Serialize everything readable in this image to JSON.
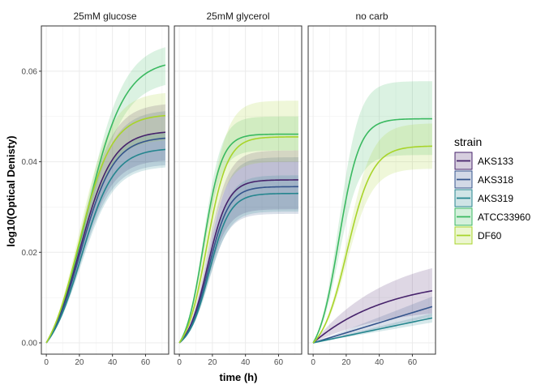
{
  "chart_data": {
    "type": "line",
    "xlabel": "time (h)",
    "ylabel": "log10(Optical Denisty)",
    "xlim": [
      -3,
      74
    ],
    "ylim": [
      -0.0025,
      0.07
    ],
    "x_ticks": [
      0,
      20,
      40,
      60
    ],
    "y_ticks": [
      0.0,
      0.02,
      0.04,
      0.06
    ],
    "y_tick_labels": [
      "0.00",
      "0.02",
      "0.04",
      "0.06"
    ],
    "grid": true,
    "legend_position": "right",
    "legend_title": "strain",
    "colors": {
      "AKS133": "#46226b",
      "AKS318": "#34548c",
      "AKS319": "#24858e",
      "ATCC33960": "#3ab960",
      "DF60": "#a8d42a"
    },
    "panels": [
      {
        "title": "25mM glucose",
        "series": [
          {
            "name": "AKS133",
            "curve": "logistic",
            "x_end": 72,
            "asymptote": 0.0468,
            "rate": 0.1,
            "midpoint": 20,
            "lower": 0.0405,
            "upper": 0.053
          },
          {
            "name": "AKS318",
            "curve": "logistic",
            "x_end": 72,
            "asymptote": 0.0455,
            "rate": 0.1,
            "midpoint": 20.5,
            "lower": 0.0395,
            "upper": 0.0515
          },
          {
            "name": "AKS319",
            "curve": "logistic",
            "x_end": 72,
            "asymptote": 0.043,
            "rate": 0.1,
            "midpoint": 21,
            "lower": 0.039,
            "upper": 0.047
          },
          {
            "name": "ATCC33960",
            "curve": "logistic",
            "x_end": 72,
            "asymptote": 0.0625,
            "rate": 0.085,
            "midpoint": 23.5,
            "lower": 0.058,
            "upper": 0.0665
          },
          {
            "name": "DF60",
            "curve": "logistic",
            "x_end": 72,
            "asymptote": 0.0505,
            "rate": 0.1,
            "midpoint": 19.5,
            "lower": 0.045,
            "upper": 0.0555
          }
        ]
      },
      {
        "title": "25mM glycerol",
        "series": [
          {
            "name": "AKS133",
            "curve": "logistic",
            "x_end": 72,
            "asymptote": 0.036,
            "rate": 0.16,
            "midpoint": 17,
            "lower": 0.0295,
            "upper": 0.0425
          },
          {
            "name": "AKS318",
            "curve": "logistic",
            "x_end": 72,
            "asymptote": 0.0345,
            "rate": 0.16,
            "midpoint": 17.5,
            "lower": 0.0285,
            "upper": 0.041
          },
          {
            "name": "AKS319",
            "curve": "logistic",
            "x_end": 72,
            "asymptote": 0.033,
            "rate": 0.16,
            "midpoint": 18,
            "lower": 0.029,
            "upper": 0.037
          },
          {
            "name": "ATCC33960",
            "curve": "logistic",
            "x_end": 72,
            "asymptote": 0.0461,
            "rate": 0.18,
            "midpoint": 14.5,
            "lower": 0.0425,
            "upper": 0.05
          },
          {
            "name": "DF60",
            "curve": "logistic",
            "x_end": 72,
            "asymptote": 0.0455,
            "rate": 0.16,
            "midpoint": 16.5,
            "lower": 0.04,
            "upper": 0.0535
          }
        ]
      },
      {
        "title": "no carb",
        "series": [
          {
            "name": "AKS133",
            "curve": "saturating",
            "x_end": 72,
            "asymptote": 0.0115,
            "rate": 0.022,
            "lower": 0.0065,
            "upper": 0.0165
          },
          {
            "name": "AKS318",
            "curve": "linear",
            "x_end": 72,
            "asymptote": 0.008,
            "lower": 0.0058,
            "upper": 0.0102
          },
          {
            "name": "AKS319",
            "curve": "linear",
            "x_end": 72,
            "asymptote": 0.0055,
            "lower": 0.0045,
            "upper": 0.0065
          },
          {
            "name": "ATCC33960",
            "curve": "logistic",
            "x_end": 72,
            "asymptote": 0.0495,
            "rate": 0.16,
            "midpoint": 15.5,
            "lower": 0.0415,
            "upper": 0.0578
          },
          {
            "name": "DF60",
            "curve": "logistic",
            "x_end": 72,
            "asymptote": 0.0435,
            "rate": 0.13,
            "midpoint": 20.5,
            "lower": 0.0385,
            "upper": 0.0485
          }
        ]
      }
    ]
  }
}
